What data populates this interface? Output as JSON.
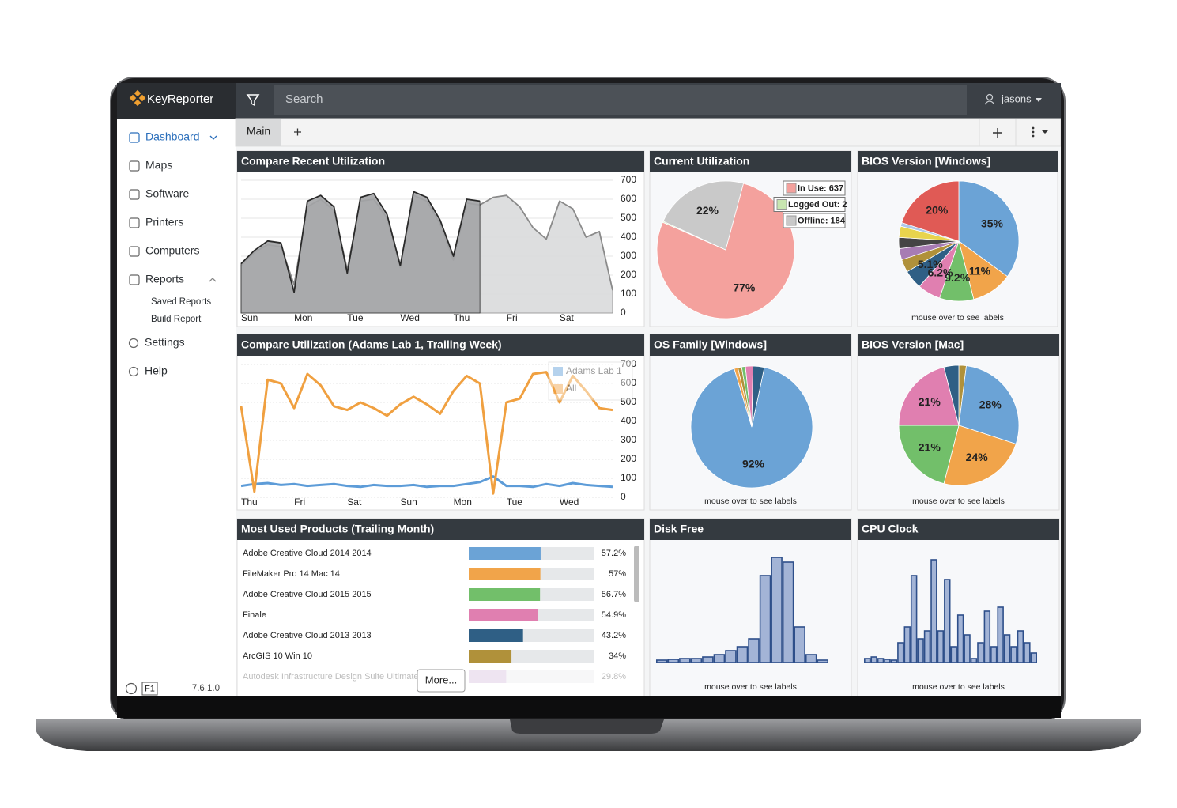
{
  "app": {
    "name": "KeyReporter",
    "search_placeholder": "Search",
    "user": "jasons",
    "help_key": "F1",
    "version": "7.6.1.0"
  },
  "sidebar": {
    "items": [
      "Dashboard",
      "Maps",
      "Software",
      "Printers",
      "Computers",
      "Reports"
    ],
    "report_items": [
      "Saved Reports",
      "Build Report"
    ],
    "bottom_items": [
      "Settings",
      "Help"
    ]
  },
  "tabs": [
    "Main"
  ],
  "chart_data": [
    {
      "type": "area",
      "title": "Compare Recent Utilization",
      "grid": true,
      "categories": [
        "Sun",
        null,
        null,
        null,
        "Mon",
        null,
        null,
        null,
        "Tue",
        null,
        null,
        null,
        "Wed",
        null,
        null,
        null,
        "Thu",
        null,
        null,
        null,
        "Fri",
        null,
        null,
        null,
        "Sat",
        null,
        null,
        null,
        null
      ],
      "series": [
        {
          "color": "#d9dadb",
          "line_color": "#8a8a8a",
          "values": [
            250,
            320,
            360,
            350,
            150,
            560,
            600,
            540,
            230,
            590,
            600,
            500,
            240,
            620,
            590,
            470,
            280,
            580,
            570,
            610,
            620,
            560,
            450,
            390,
            590,
            550,
            400,
            430,
            120
          ]
        },
        {
          "color": "#a3a4a6",
          "line_color": "#2a2a2a",
          "values": [
            260,
            330,
            380,
            370,
            110,
            590,
            620,
            560,
            210,
            610,
            630,
            520,
            250,
            640,
            610,
            490,
            300,
            600,
            590,
            null,
            null,
            null,
            null,
            null,
            null,
            null,
            null,
            null,
            null
          ]
        }
      ],
      "ylim": [
        0,
        700
      ],
      "yticks": [
        0,
        100,
        200,
        300,
        400,
        500,
        600,
        700
      ]
    },
    {
      "type": "pie",
      "title": "Current Utilization",
      "categories": [
        "In Use: 637",
        "Logged Out: 2",
        "Offline: 184"
      ],
      "values": [
        637,
        2,
        184
      ],
      "value_labels": [
        "77%",
        null,
        "22%"
      ],
      "colors": [
        "#f4a19d",
        "#c8e6b0",
        "#c9c9c9"
      ]
    },
    {
      "type": "pie",
      "title": "BIOS Version [Windows]",
      "caption": "mouse over to see labels",
      "values": [
        35,
        11,
        9.2,
        6.2,
        5.1,
        3.5,
        3,
        3,
        3,
        1,
        20
      ],
      "value_labels": [
        "35%",
        "11%",
        "9.2%",
        "6.2%",
        "5.1%",
        null,
        null,
        null,
        null,
        null,
        "20%"
      ],
      "colors": [
        "#6ba3d6",
        "#f1a44a",
        "#72bf6a",
        "#e07fb0",
        "#2f5f85",
        "#b0913a",
        "#a77cb3",
        "#444444",
        "#e8d44d",
        "#aec7e8",
        "#e05a55"
      ]
    },
    {
      "type": "line",
      "title": "Compare Utilization (Adams Lab 1, Trailing Week)",
      "grid": true,
      "categories": [
        "Thu",
        null,
        null,
        null,
        "Fri",
        null,
        null,
        null,
        "Sat",
        null,
        null,
        null,
        "Sun",
        null,
        null,
        null,
        "Mon",
        null,
        null,
        null,
        "Tue",
        null,
        null,
        null,
        "Wed",
        null,
        null,
        null,
        null
      ],
      "series": [
        {
          "name": "Adams Lab 1",
          "color": "#5d9cd8",
          "values": [
            60,
            70,
            75,
            65,
            70,
            60,
            65,
            70,
            60,
            55,
            65,
            60,
            60,
            65,
            55,
            60,
            60,
            70,
            80,
            110,
            60,
            60,
            55,
            70,
            60,
            75,
            65,
            60,
            55
          ]
        },
        {
          "name": "All",
          "color": "#f0a040",
          "values": [
            480,
            30,
            620,
            600,
            470,
            650,
            590,
            480,
            460,
            500,
            470,
            430,
            490,
            530,
            490,
            440,
            560,
            640,
            600,
            20,
            500,
            520,
            650,
            660,
            500,
            640,
            560,
            470,
            460
          ]
        }
      ],
      "ylim": [
        0,
        700
      ],
      "yticks": [
        0,
        100,
        200,
        300,
        400,
        500,
        600,
        700
      ]
    },
    {
      "type": "pie",
      "title": "OS Family [Windows]",
      "caption": "mouse over to see labels",
      "values": [
        92,
        1,
        1,
        1,
        2,
        3
      ],
      "value_labels": [
        "92%",
        null,
        null,
        null,
        null,
        null
      ],
      "colors": [
        "#6ba3d6",
        "#f1a44a",
        "#b0913a",
        "#72bf6a",
        "#e07fb0",
        "#2f5f85"
      ]
    },
    {
      "type": "pie",
      "title": "BIOS Version [Mac]",
      "caption": "mouse over to see labels",
      "values": [
        2,
        28,
        24,
        21,
        21,
        4
      ],
      "value_labels": [
        null,
        "28%",
        "24%",
        "21%",
        "21%",
        null
      ],
      "colors": [
        "#b0913a",
        "#6ba3d6",
        "#f1a44a",
        "#72bf6a",
        "#e07fb0",
        "#2f5f85"
      ]
    },
    {
      "type": "bar",
      "orientation": "horizontal",
      "title": "Most Used Products (Trailing Month)",
      "more": "More...",
      "categories": [
        "Adobe Creative Cloud 2014 2014",
        "FileMaker Pro 14 Mac 14",
        "Adobe Creative Cloud 2015 2015",
        "Finale",
        "Adobe Creative Cloud 2013 2013",
        "ArcGIS 10 Win 10",
        "Autodesk Infrastructure Design Suite Ultimate"
      ],
      "values": [
        57.2,
        57,
        56.7,
        54.9,
        43.2,
        34,
        29.8
      ],
      "value_labels": [
        "57.2%",
        "57%",
        "56.7%",
        "54.9%",
        "43.2%",
        "34%",
        "29.8%"
      ],
      "colors": [
        "#6ba3d6",
        "#f1a44a",
        "#72bf6a",
        "#e07fb0",
        "#2f5f85",
        "#b0913a",
        "#c9a9d4"
      ],
      "xlim": [
        0,
        100
      ]
    },
    {
      "type": "bar",
      "title": "Disk Free",
      "caption": "mouse over to see labels",
      "color": "#a3b4d6",
      "edge_color": "#2e4f8a",
      "values": [
        3,
        4,
        5,
        5,
        7,
        10,
        15,
        20,
        30,
        110,
        133,
        127,
        45,
        10,
        3
      ]
    },
    {
      "type": "bar",
      "title": "CPU Clock",
      "caption": "mouse over to see labels",
      "color": "#a3b4d6",
      "edge_color": "#2e4f8a",
      "values": [
        5,
        7,
        5,
        4,
        3,
        25,
        45,
        110,
        30,
        40,
        130,
        40,
        105,
        20,
        60,
        35,
        5,
        25,
        65,
        20,
        70,
        35,
        20,
        40,
        25,
        12
      ]
    }
  ]
}
